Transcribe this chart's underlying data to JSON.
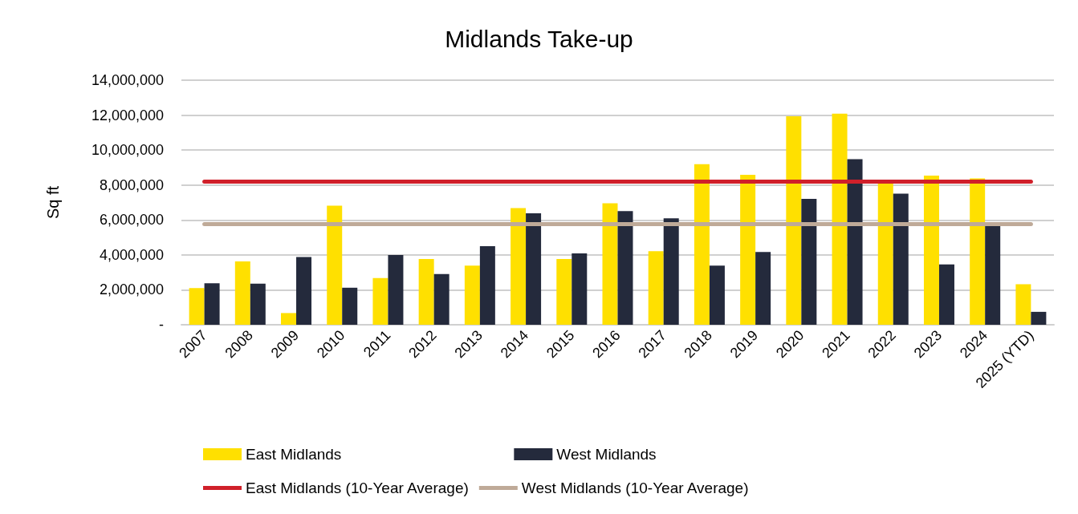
{
  "chart_data": {
    "type": "bar",
    "title": "Midlands Take-up",
    "ylabel": "Sq ft",
    "categories": [
      "2007",
      "2008",
      "2009",
      "2010",
      "2011",
      "2012",
      "2013",
      "2014",
      "2015",
      "2016",
      "2017",
      "2018",
      "2019",
      "2020",
      "2021",
      "2022",
      "2023",
      "2024",
      "2025 (YTD)"
    ],
    "series": [
      {
        "name": "East Midlands",
        "color": "#ffe000",
        "values": [
          2100000,
          3630000,
          670000,
          6820000,
          2670000,
          3760000,
          3390000,
          6680000,
          3760000,
          6950000,
          4210000,
          9190000,
          8580000,
          11930000,
          12080000,
          8090000,
          8540000,
          8380000,
          2320000
        ]
      },
      {
        "name": "West Midlands",
        "color": "#242a3c",
        "values": [
          2380000,
          2350000,
          3880000,
          2120000,
          3990000,
          2900000,
          4500000,
          6380000,
          4090000,
          6510000,
          6090000,
          3380000,
          4160000,
          7210000,
          9480000,
          7500000,
          3450000,
          5650000,
          740000
        ]
      }
    ],
    "ref_lines": [
      {
        "axis": "y",
        "value": 8190000,
        "label": "East Midlands (10-Year Average)",
        "color": "#d0202a"
      },
      {
        "axis": "y",
        "value": 5770000,
        "label": "West Midlands (10-Year Average)",
        "color": "#bfaa98"
      }
    ],
    "ylim": [
      0,
      14000000
    ],
    "yticks": [
      {
        "value": 0,
        "label": "-"
      },
      {
        "value": 2000000,
        "label": "2,000,000"
      },
      {
        "value": 4000000,
        "label": "4,000,000"
      },
      {
        "value": 6000000,
        "label": "6,000,000"
      },
      {
        "value": 8000000,
        "label": "8,000,000"
      },
      {
        "value": 10000000,
        "label": "10,000,000"
      },
      {
        "value": 12000000,
        "label": "12,000,000"
      },
      {
        "value": 14000000,
        "label": "14,000,000"
      }
    ],
    "grid": "y",
    "legend": "bottom"
  }
}
